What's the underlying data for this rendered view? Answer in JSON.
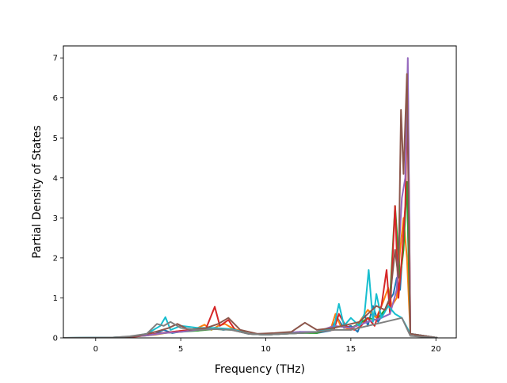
{
  "chart_data": {
    "type": "line",
    "title": "",
    "xlabel": "Frequency (THz)",
    "ylabel": "Partial Density of States",
    "xlim": [
      -1.9,
      21.2
    ],
    "ylim": [
      0,
      7.3
    ],
    "xticks": [
      0,
      5,
      10,
      15,
      20
    ],
    "yticks": [
      0,
      1,
      2,
      3,
      4,
      5,
      6,
      7
    ],
    "grid": false,
    "legend": "none",
    "series": [
      {
        "color": "#1f77b4",
        "x": [
          -1.9,
          0.5,
          1.5,
          2.5,
          3.5,
          4.0,
          4.5,
          5.0,
          5.5,
          6.0,
          6.5,
          7.0,
          7.5,
          8.0,
          9.0,
          10.0,
          11.0,
          12.0,
          13.0,
          13.8,
          14.2,
          14.6,
          15.0,
          15.4,
          15.8,
          16.0,
          16.3,
          16.6,
          16.9,
          17.2,
          17.5,
          17.7,
          17.9,
          18.1,
          18.3,
          18.5,
          20.1
        ],
        "y": [
          0,
          0,
          0.01,
          0.05,
          0.1,
          0.2,
          0.12,
          0.16,
          0.2,
          0.18,
          0.22,
          0.25,
          0.2,
          0.22,
          0.1,
          0.08,
          0.1,
          0.15,
          0.12,
          0.18,
          0.5,
          0.25,
          0.3,
          0.15,
          0.6,
          0.3,
          0.8,
          0.4,
          0.6,
          0.9,
          1.1,
          1.5,
          1.2,
          2.6,
          3.8,
          0.1,
          0
        ]
      },
      {
        "color": "#ff7f0e",
        "x": [
          -1.9,
          0.5,
          1.5,
          2.5,
          3.5,
          4.5,
          5.5,
          6.0,
          6.4,
          6.8,
          7.2,
          7.6,
          8.0,
          9.0,
          10.0,
          11.0,
          12.0,
          13.0,
          13.8,
          14.1,
          14.4,
          15.0,
          15.5,
          16.0,
          16.5,
          16.9,
          17.2,
          17.4,
          17.7,
          17.9,
          18.1,
          18.3,
          18.5,
          20.1
        ],
        "y": [
          0,
          0,
          0.01,
          0.04,
          0.08,
          0.15,
          0.2,
          0.25,
          0.33,
          0.2,
          0.3,
          0.35,
          0.25,
          0.1,
          0.08,
          0.1,
          0.12,
          0.15,
          0.2,
          0.6,
          0.3,
          0.2,
          0.4,
          0.7,
          0.5,
          0.9,
          1.25,
          0.8,
          1.0,
          2.2,
          3.0,
          2.0,
          0.1,
          0
        ]
      },
      {
        "color": "#2ca02c",
        "x": [
          -1.9,
          1.0,
          2.0,
          3.0,
          4.0,
          5.0,
          6.0,
          7.0,
          8.0,
          9.0,
          10.0,
          11.0,
          12.0,
          13.0,
          14.0,
          14.5,
          15.0,
          15.5,
          16.0,
          16.5,
          17.0,
          17.3,
          17.6,
          17.9,
          18.1,
          18.3,
          18.5,
          20.1
        ],
        "y": [
          0,
          0.01,
          0.03,
          0.06,
          0.12,
          0.15,
          0.18,
          0.22,
          0.2,
          0.1,
          0.08,
          0.1,
          0.12,
          0.12,
          0.25,
          0.3,
          0.25,
          0.35,
          0.5,
          0.45,
          0.7,
          1.0,
          3.3,
          1.5,
          2.2,
          3.9,
          0.1,
          0
        ]
      },
      {
        "color": "#d62728",
        "x": [
          -1.9,
          0.5,
          1.5,
          2.5,
          3.5,
          4.5,
          5.5,
          6.5,
          7.0,
          7.3,
          7.8,
          8.2,
          9.0,
          10.0,
          11.0,
          12.0,
          13.0,
          14.0,
          14.3,
          14.7,
          15.2,
          15.6,
          16.0,
          16.4,
          16.8,
          17.1,
          17.3,
          17.6,
          17.8,
          18.0,
          18.2,
          18.35,
          18.5,
          20.1
        ],
        "y": [
          0,
          0,
          0.01,
          0.04,
          0.1,
          0.15,
          0.2,
          0.25,
          0.78,
          0.3,
          0.45,
          0.2,
          0.1,
          0.08,
          0.1,
          0.12,
          0.15,
          0.2,
          0.6,
          0.3,
          0.2,
          0.3,
          0.5,
          0.3,
          0.8,
          1.7,
          0.6,
          3.3,
          1.0,
          2.0,
          3.3,
          6.6,
          0.1,
          0
        ]
      },
      {
        "color": "#9467bd",
        "x": [
          -1.9,
          1.0,
          2.0,
          3.0,
          4.0,
          5.0,
          6.0,
          7.0,
          8.0,
          9.0,
          10.0,
          11.0,
          12.0,
          13.0,
          14.0,
          15.0,
          16.0,
          16.8,
          17.3,
          17.7,
          18.0,
          18.2,
          18.35,
          18.5,
          20.1
        ],
        "y": [
          0,
          0.01,
          0.03,
          0.06,
          0.12,
          0.15,
          0.2,
          0.25,
          0.2,
          0.1,
          0.1,
          0.12,
          0.15,
          0.15,
          0.3,
          0.25,
          0.4,
          0.5,
          0.6,
          1.2,
          3.5,
          4.0,
          7.0,
          0.1,
          0
        ]
      },
      {
        "color": "#17becf",
        "x": [
          -1.9,
          1.0,
          2.0,
          3.0,
          3.8,
          4.1,
          4.4,
          5.0,
          6.0,
          7.0,
          8.0,
          9.0,
          10.0,
          11.0,
          12.0,
          13.0,
          14.0,
          14.3,
          14.6,
          15.0,
          15.5,
          15.8,
          16.05,
          16.3,
          16.5,
          16.8,
          17.2,
          17.6,
          18.0,
          18.5,
          20.1
        ],
        "y": [
          0,
          0.01,
          0.03,
          0.1,
          0.3,
          0.52,
          0.2,
          0.3,
          0.25,
          0.25,
          0.22,
          0.1,
          0.08,
          0.1,
          0.12,
          0.15,
          0.25,
          0.85,
          0.3,
          0.5,
          0.3,
          0.6,
          1.7,
          0.4,
          1.1,
          0.5,
          0.8,
          0.6,
          0.5,
          0.1,
          0
        ]
      },
      {
        "color": "#8c564b",
        "x": [
          -1.9,
          0.5,
          1.5,
          2.5,
          3.5,
          4.3,
          4.8,
          5.5,
          6.5,
          7.2,
          7.8,
          8.5,
          9.5,
          10.5,
          11.5,
          12.3,
          13.0,
          14.0,
          14.5,
          15.0,
          15.5,
          16.0,
          16.5,
          17.0,
          17.3,
          17.6,
          17.8,
          17.95,
          18.1,
          18.3,
          18.5,
          20.1
        ],
        "y": [
          0,
          0,
          0.01,
          0.05,
          0.15,
          0.25,
          0.35,
          0.2,
          0.25,
          0.35,
          0.5,
          0.2,
          0.1,
          0.12,
          0.15,
          0.38,
          0.2,
          0.25,
          0.3,
          0.35,
          0.4,
          0.6,
          0.8,
          0.7,
          1.0,
          2.2,
          1.5,
          5.7,
          4.1,
          6.6,
          0.1,
          0
        ]
      },
      {
        "color": "#7f7f7f",
        "x": [
          -1.9,
          1.0,
          2.0,
          3.0,
          3.6,
          4.0,
          4.4,
          5.0,
          6.0,
          7.0,
          8.0,
          9.0,
          10.0,
          11.0,
          12.0,
          13.0,
          14.0,
          15.0,
          16.0,
          17.0,
          18.0,
          18.5,
          20.1
        ],
        "y": [
          0,
          0.01,
          0.04,
          0.1,
          0.35,
          0.3,
          0.4,
          0.25,
          0.2,
          0.22,
          0.2,
          0.1,
          0.08,
          0.1,
          0.12,
          0.15,
          0.2,
          0.2,
          0.3,
          0.4,
          0.5,
          0.05,
          0
        ]
      }
    ]
  }
}
